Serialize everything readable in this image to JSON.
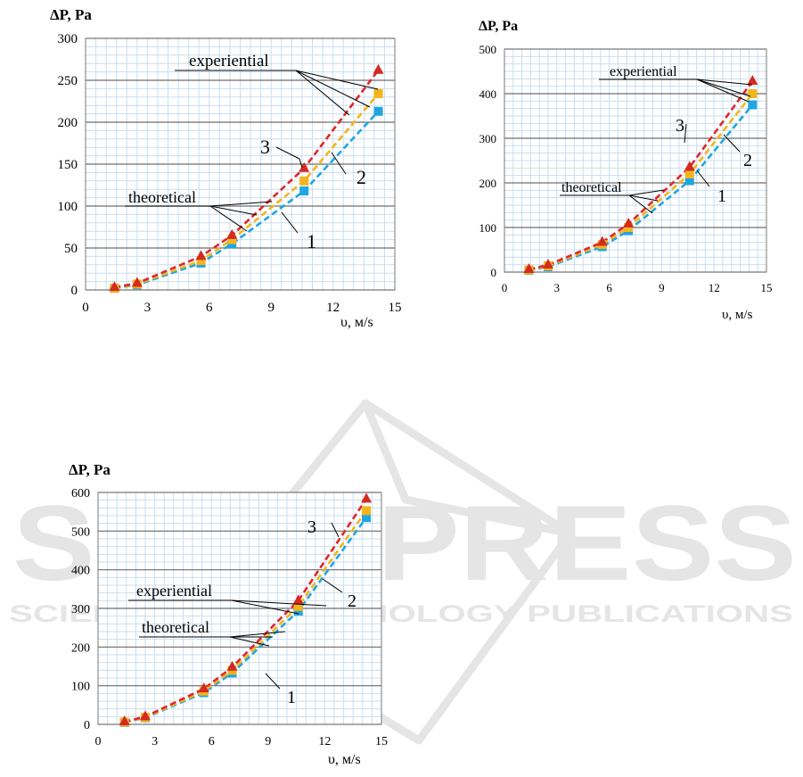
{
  "watermark": {
    "title": "SCITEPRESS",
    "subtitle": "SCIENCE AND TECHNOLOGY PUBLICATIONS",
    "color": "#d0d0d0"
  },
  "colors": {
    "series_1": "#1fa6e0",
    "series_2": "#f3b51b",
    "series_3": "#e0262a",
    "marker_3": "#d32a21",
    "plot_bg": "#ffffff",
    "minor_grid": "#c9def0",
    "major_grid": "#6e6e6e",
    "callout": "#000000"
  },
  "chart_data": [
    {
      "type": "line",
      "ylabel": "ΔP, Pa",
      "xlabel": "υ, м/s",
      "xlim": [
        0,
        15
      ],
      "ylim": [
        0,
        300
      ],
      "xticks": [
        0,
        3,
        6,
        9,
        12,
        15
      ],
      "yticks": [
        0,
        50,
        100,
        150,
        200,
        250,
        300
      ],
      "grid": true,
      "x": [
        1.4,
        2.5,
        5.6,
        7.1,
        10.6,
        14.2
      ],
      "series": [
        {
          "label": "1",
          "values": [
            2,
            6,
            32,
            55,
            118,
            213
          ]
        },
        {
          "label": "2",
          "values": [
            2,
            7,
            35,
            60,
            130,
            234
          ]
        },
        {
          "label": "3",
          "values": [
            3,
            8,
            40,
            65,
            145,
            262
          ]
        }
      ],
      "annotations": {
        "experiential": "experiential",
        "theoretical": "theoretical",
        "curve_numbers": [
          "1",
          "2",
          "3"
        ]
      }
    },
    {
      "type": "line",
      "ylabel": "ΔP, Pa",
      "xlabel": "υ, м/s",
      "xlim": [
        0,
        15
      ],
      "ylim": [
        0,
        500
      ],
      "xticks": [
        0,
        3,
        6,
        9,
        12,
        15
      ],
      "yticks": [
        0,
        100,
        200,
        300,
        400,
        500
      ],
      "grid": true,
      "x": [
        1.4,
        2.5,
        5.6,
        7.1,
        10.6,
        14.2
      ],
      "series": [
        {
          "label": "1",
          "values": [
            4,
            12,
            57,
            93,
            205,
            375
          ]
        },
        {
          "label": "2",
          "values": [
            5,
            14,
            62,
            100,
            220,
            400
          ]
        },
        {
          "label": "3",
          "values": [
            6,
            16,
            67,
            108,
            235,
            428
          ]
        }
      ],
      "annotations": {
        "experiential": "experiential",
        "theoretical": "theoretical",
        "curve_numbers": [
          "1",
          "2",
          "3"
        ]
      }
    },
    {
      "type": "line",
      "ylabel": "ΔP, Pa",
      "xlabel": "υ, м/s",
      "xlim": [
        0,
        15
      ],
      "ylim": [
        0,
        600
      ],
      "xticks": [
        0,
        3,
        6,
        9,
        12,
        15
      ],
      "yticks": [
        0,
        100,
        200,
        300,
        400,
        500,
        600
      ],
      "grid": true,
      "x": [
        1.4,
        2.5,
        5.6,
        7.1,
        10.6,
        14.2
      ],
      "series": [
        {
          "label": "1",
          "values": [
            5,
            17,
            82,
            133,
            293,
            535
          ]
        },
        {
          "label": "2",
          "values": [
            6,
            18,
            86,
            140,
            305,
            553
          ]
        },
        {
          "label": "3",
          "values": [
            7,
            20,
            92,
            148,
            320,
            583
          ]
        }
      ],
      "annotations": {
        "experiential": "experiential",
        "theoretical": "theoretical",
        "curve_numbers": [
          "1",
          "2",
          "3"
        ]
      }
    }
  ]
}
